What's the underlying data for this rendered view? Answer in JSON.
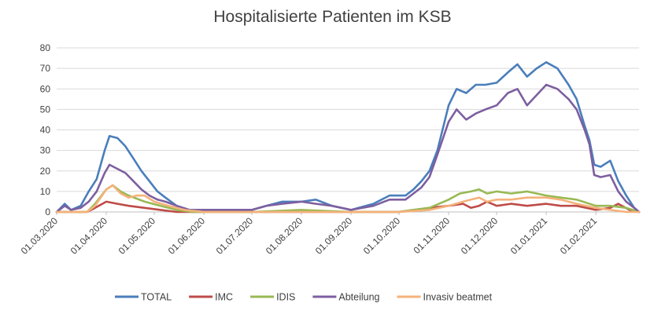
{
  "chart_data": {
    "type": "line",
    "title": "Hospitalisierte Patienten im KSB",
    "xlabel": "",
    "ylabel": "",
    "ylim": [
      0,
      80
    ],
    "yticks": [
      0,
      10,
      20,
      30,
      40,
      50,
      60,
      70,
      80
    ],
    "x_start": "01.03.2020",
    "x_end": "28.02.2021",
    "xticks": [
      "01.03.2020",
      "01.04.2020",
      "01.05.2020",
      "01.06.2020",
      "01.07.2020",
      "01.08.2020",
      "01.09.2020",
      "01.10.2020",
      "01.11.2020",
      "01.12.2020",
      "01.01.2021",
      "01.02.2021"
    ],
    "grid": "horizontal",
    "legend_position": "bottom",
    "series": [
      {
        "name": "TOTAL",
        "color": "#4a7ebb",
        "points": [
          [
            "01.03.2020",
            0
          ],
          [
            "06.03.2020",
            4
          ],
          [
            "10.03.2020",
            1
          ],
          [
            "16.03.2020",
            3
          ],
          [
            "21.03.2020",
            10
          ],
          [
            "26.03.2020",
            16
          ],
          [
            "31.03.2020",
            30
          ],
          [
            "03.04.2020",
            37
          ],
          [
            "08.04.2020",
            36
          ],
          [
            "13.04.2020",
            32
          ],
          [
            "18.04.2020",
            26
          ],
          [
            "23.04.2020",
            20
          ],
          [
            "28.04.2020",
            15
          ],
          [
            "03.05.2020",
            10
          ],
          [
            "08.05.2020",
            7
          ],
          [
            "15.05.2020",
            3
          ],
          [
            "23.05.2020",
            1
          ],
          [
            "01.06.2020",
            1
          ],
          [
            "01.07.2020",
            1
          ],
          [
            "10.07.2020",
            3
          ],
          [
            "20.07.2020",
            5
          ],
          [
            "01.08.2020",
            5
          ],
          [
            "10.08.2020",
            6
          ],
          [
            "20.08.2020",
            3
          ],
          [
            "01.09.2020",
            1
          ],
          [
            "15.09.2020",
            4
          ],
          [
            "25.09.2020",
            8
          ],
          [
            "05.10.2020",
            8
          ],
          [
            "10.10.2020",
            11
          ],
          [
            "15.10.2020",
            15
          ],
          [
            "20.10.2020",
            20
          ],
          [
            "25.10.2020",
            30
          ],
          [
            "01.11.2020",
            52
          ],
          [
            "06.11.2020",
            60
          ],
          [
            "12.11.2020",
            58
          ],
          [
            "18.11.2020",
            62
          ],
          [
            "24.11.2020",
            62
          ],
          [
            "01.12.2020",
            63
          ],
          [
            "08.12.2020",
            68
          ],
          [
            "14.12.2020",
            72
          ],
          [
            "20.12.2020",
            66
          ],
          [
            "26.12.2020",
            70
          ],
          [
            "01.01.2021",
            73
          ],
          [
            "08.01.2021",
            70
          ],
          [
            "15.01.2021",
            62
          ],
          [
            "20.01.2021",
            55
          ],
          [
            "25.01.2021",
            42
          ],
          [
            "28.01.2021",
            35
          ],
          [
            "31.01.2021",
            23
          ],
          [
            "04.02.2021",
            22
          ],
          [
            "10.02.2021",
            25
          ],
          [
            "15.02.2021",
            15
          ],
          [
            "20.02.2021",
            8
          ],
          [
            "25.02.2021",
            2
          ],
          [
            "28.02.2021",
            0
          ]
        ]
      },
      {
        "name": "IMC",
        "color": "#be4b48",
        "points": [
          [
            "01.03.2020",
            0
          ],
          [
            "20.03.2020",
            0
          ],
          [
            "25.03.2020",
            2
          ],
          [
            "01.04.2020",
            5
          ],
          [
            "08.04.2020",
            4
          ],
          [
            "15.04.2020",
            3
          ],
          [
            "25.04.2020",
            2
          ],
          [
            "05.05.2020",
            1
          ],
          [
            "15.05.2020",
            0
          ],
          [
            "01.06.2020",
            0
          ],
          [
            "01.10.2020",
            0
          ],
          [
            "10.10.2020",
            1
          ],
          [
            "20.10.2020",
            2
          ],
          [
            "01.11.2020",
            3
          ],
          [
            "10.11.2020",
            4
          ],
          [
            "15.11.2020",
            2
          ],
          [
            "20.11.2020",
            3
          ],
          [
            "25.11.2020",
            5
          ],
          [
            "01.12.2020",
            3
          ],
          [
            "10.12.2020",
            4
          ],
          [
            "20.12.2020",
            3
          ],
          [
            "01.01.2021",
            4
          ],
          [
            "10.01.2021",
            3
          ],
          [
            "20.01.2021",
            3
          ],
          [
            "01.02.2021",
            1
          ],
          [
            "10.02.2021",
            2
          ],
          [
            "15.02.2021",
            4
          ],
          [
            "22.02.2021",
            1
          ],
          [
            "28.02.2021",
            0
          ]
        ]
      },
      {
        "name": "IDIS",
        "color": "#98b954",
        "points": [
          [
            "01.03.2020",
            0
          ],
          [
            "20.03.2020",
            0
          ],
          [
            "25.03.2020",
            4
          ],
          [
            "01.04.2020",
            11
          ],
          [
            "05.04.2020",
            13
          ],
          [
            "10.04.2020",
            10
          ],
          [
            "15.04.2020",
            8
          ],
          [
            "25.04.2020",
            5
          ],
          [
            "05.05.2020",
            3
          ],
          [
            "15.05.2020",
            1
          ],
          [
            "25.05.2020",
            0
          ],
          [
            "01.07.2020",
            0
          ],
          [
            "01.08.2020",
            1
          ],
          [
            "01.09.2020",
            0
          ],
          [
            "01.10.2020",
            0
          ],
          [
            "10.10.2020",
            1
          ],
          [
            "20.10.2020",
            2
          ],
          [
            "01.11.2020",
            6
          ],
          [
            "08.11.2020",
            9
          ],
          [
            "15.11.2020",
            10
          ],
          [
            "20.11.2020",
            11
          ],
          [
            "25.11.2020",
            9
          ],
          [
            "01.12.2020",
            10
          ],
          [
            "10.12.2020",
            9
          ],
          [
            "20.12.2020",
            10
          ],
          [
            "01.01.2021",
            8
          ],
          [
            "10.01.2021",
            7
          ],
          [
            "20.01.2021",
            6
          ],
          [
            "01.02.2021",
            3
          ],
          [
            "10.02.2021",
            3
          ],
          [
            "20.02.2021",
            2
          ],
          [
            "28.02.2021",
            0
          ]
        ]
      },
      {
        "name": "Abteilung",
        "color": "#7d5fa0",
        "points": [
          [
            "01.03.2020",
            0
          ],
          [
            "06.03.2020",
            3
          ],
          [
            "10.03.2020",
            1
          ],
          [
            "16.03.2020",
            2
          ],
          [
            "21.03.2020",
            5
          ],
          [
            "26.03.2020",
            10
          ],
          [
            "31.03.2020",
            19
          ],
          [
            "03.04.2020",
            23
          ],
          [
            "08.04.2020",
            21
          ],
          [
            "13.04.2020",
            19
          ],
          [
            "18.04.2020",
            15
          ],
          [
            "23.04.2020",
            11
          ],
          [
            "28.04.2020",
            8
          ],
          [
            "03.05.2020",
            6
          ],
          [
            "08.05.2020",
            5
          ],
          [
            "15.05.2020",
            3
          ],
          [
            "23.05.2020",
            1
          ],
          [
            "01.06.2020",
            1
          ],
          [
            "01.07.2020",
            1
          ],
          [
            "10.07.2020",
            3
          ],
          [
            "20.07.2020",
            4
          ],
          [
            "01.08.2020",
            5
          ],
          [
            "10.08.2020",
            4
          ],
          [
            "20.08.2020",
            3
          ],
          [
            "01.09.2020",
            1
          ],
          [
            "15.09.2020",
            3
          ],
          [
            "25.09.2020",
            6
          ],
          [
            "05.10.2020",
            6
          ],
          [
            "10.10.2020",
            9
          ],
          [
            "15.10.2020",
            12
          ],
          [
            "20.10.2020",
            17
          ],
          [
            "25.10.2020",
            28
          ],
          [
            "01.11.2020",
            44
          ],
          [
            "06.11.2020",
            50
          ],
          [
            "12.11.2020",
            45
          ],
          [
            "18.11.2020",
            48
          ],
          [
            "24.11.2020",
            50
          ],
          [
            "01.12.2020",
            52
          ],
          [
            "08.12.2020",
            58
          ],
          [
            "14.12.2020",
            60
          ],
          [
            "20.12.2020",
            52
          ],
          [
            "26.12.2020",
            57
          ],
          [
            "01.01.2021",
            62
          ],
          [
            "08.01.2021",
            60
          ],
          [
            "15.01.2021",
            55
          ],
          [
            "20.01.2021",
            50
          ],
          [
            "25.01.2021",
            40
          ],
          [
            "28.01.2021",
            33
          ],
          [
            "31.01.2021",
            18
          ],
          [
            "04.02.2021",
            17
          ],
          [
            "10.02.2021",
            18
          ],
          [
            "15.02.2021",
            10
          ],
          [
            "20.02.2021",
            5
          ],
          [
            "25.02.2021",
            2
          ],
          [
            "28.02.2021",
            0
          ]
        ]
      },
      {
        "name": "Invasiv beatmet",
        "color": "#f5b27a",
        "points": [
          [
            "01.03.2020",
            0
          ],
          [
            "20.03.2020",
            0
          ],
          [
            "25.03.2020",
            3
          ],
          [
            "01.04.2020",
            11
          ],
          [
            "05.04.2020",
            13
          ],
          [
            "10.04.2020",
            9
          ],
          [
            "15.04.2020",
            7
          ],
          [
            "20.04.2020",
            8
          ],
          [
            "25.04.2020",
            8
          ],
          [
            "01.05.2020",
            5
          ],
          [
            "10.05.2020",
            3
          ],
          [
            "20.05.2020",
            1
          ],
          [
            "01.06.2020",
            0
          ],
          [
            "01.10.2020",
            0
          ],
          [
            "20.10.2020",
            1
          ],
          [
            "01.11.2020",
            3
          ],
          [
            "10.11.2020",
            5
          ],
          [
            "15.11.2020",
            6
          ],
          [
            "20.11.2020",
            7
          ],
          [
            "25.11.2020",
            5
          ],
          [
            "01.12.2020",
            6
          ],
          [
            "10.12.2020",
            6
          ],
          [
            "20.12.2020",
            7
          ],
          [
            "01.01.2021",
            7
          ],
          [
            "10.01.2021",
            6
          ],
          [
            "20.01.2021",
            4
          ],
          [
            "01.02.2021",
            2
          ],
          [
            "10.02.2021",
            1
          ],
          [
            "20.02.2021",
            0
          ],
          [
            "28.02.2021",
            0
          ]
        ]
      }
    ]
  }
}
